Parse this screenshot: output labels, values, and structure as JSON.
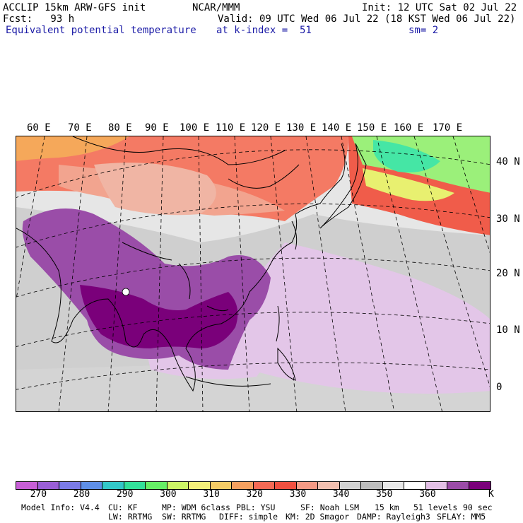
{
  "header": {
    "model": "ACCLIP 15km ARW-GFS init",
    "center": "NCAR/MMM",
    "init": "Init: 12 UTC Sat 02 Jul 22",
    "forecast": "Fcst:   93 h",
    "valid": "Valid: 09 UTC Wed 06 Jul 22 (18 KST Wed 06 Jul 22)",
    "field": "Equivalent potential temperature",
    "level": "at k-index =  51",
    "smoothing": "sm= 2"
  },
  "map": {
    "lon_labels": [
      "60 E",
      "70 E",
      "80 E",
      "90 E",
      "100 E",
      "110 E",
      "120 E",
      "130 E",
      "140 E",
      "150 E",
      "160 E",
      "170 E"
    ],
    "lat_labels": [
      "40 N",
      "30 N",
      "20 N",
      "10 N",
      "0"
    ]
  },
  "colorbar": {
    "colors": [
      "#c75fd6",
      "#9a5fd6",
      "#7b7be6",
      "#5f8fe6",
      "#33c8c8",
      "#33e09a",
      "#66ee66",
      "#ccf566",
      "#f5f07a",
      "#f5cc66",
      "#f5a05f",
      "#f56a55",
      "#f05040",
      "#f59a85",
      "#f2c0b0",
      "#d2d2d2",
      "#bdbdbd",
      "#e8e8e8",
      "#ffffff",
      "#e3c0e6",
      "#9b4ca8",
      "#7a007a"
    ],
    "ticks": [
      "270",
      "280",
      "290",
      "300",
      "310",
      "320",
      "330",
      "340",
      "350",
      "360"
    ],
    "unit": "K"
  },
  "footer": {
    "line1": [
      "Model Info: V4.4",
      "CU: KF",
      "MP: WDM 6class",
      "PBL: YSU",
      "SF: Noah LSM",
      "15 km",
      "51 levels",
      "90 sec"
    ],
    "line2": [
      "LW: RRTMG",
      "SW: RRTMG",
      "DIFF: simple",
      "KM: 2D Smagor",
      "DAMP: Rayleigh3",
      "SFLAY: MM5"
    ]
  }
}
